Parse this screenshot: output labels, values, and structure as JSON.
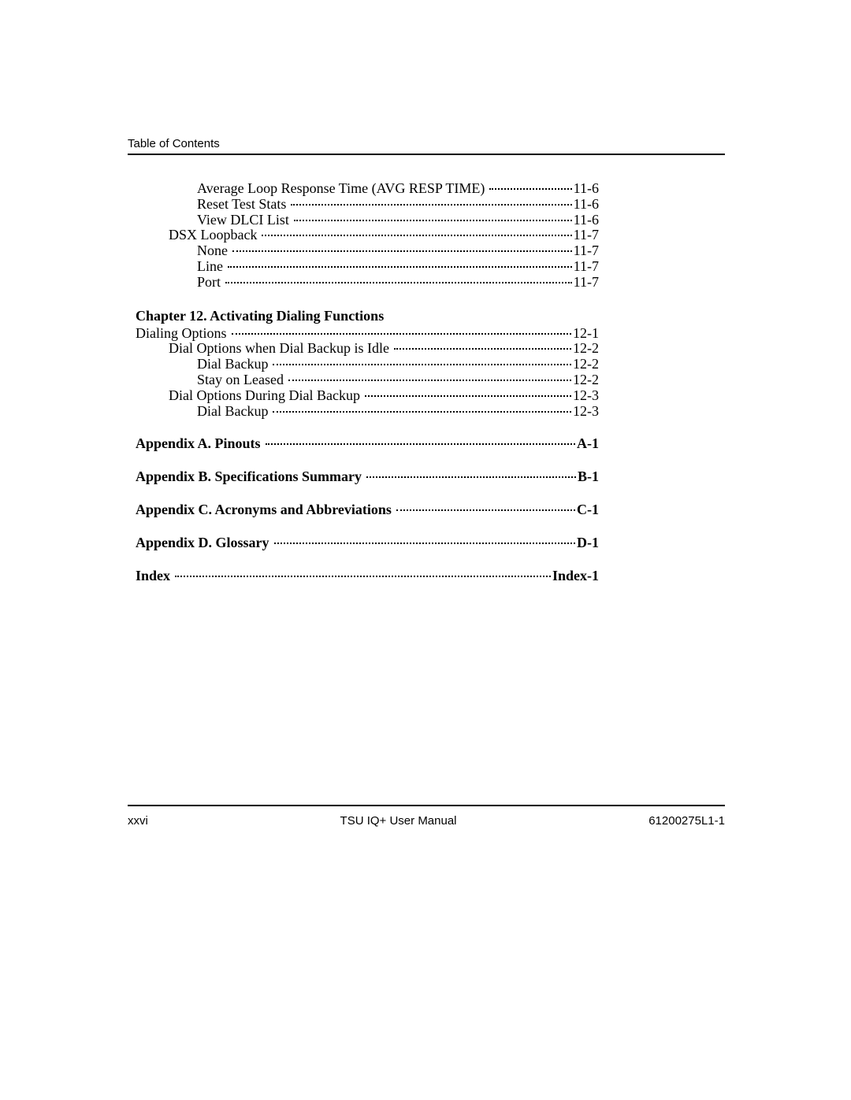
{
  "header": {
    "title": "Table of Contents"
  },
  "footer": {
    "page_number": "xxvi",
    "center": "TSU IQ+ User Manual",
    "doc_number": "61200275L1-1"
  },
  "toc": [
    {
      "label": "Average Loop Response Time (AVG RESP TIME)",
      "page": "11-6",
      "indent": 3,
      "bold": false,
      "leader": true
    },
    {
      "label": "Reset Test Stats",
      "page": "11-6",
      "indent": 2,
      "bold": false,
      "leader": true
    },
    {
      "label": "View DLCI List",
      "page": "11-6",
      "indent": 2,
      "bold": false,
      "leader": true
    },
    {
      "label": "DSX Loopback",
      "page": "11-7",
      "indent": 1,
      "bold": false,
      "leader": true
    },
    {
      "label": "None",
      "page": "11-7",
      "indent": 2,
      "bold": false,
      "leader": true
    },
    {
      "label": "Line",
      "page": "11-7",
      "indent": 2,
      "bold": false,
      "leader": true
    },
    {
      "label": "Port",
      "page": "11-7",
      "indent": 2,
      "bold": false,
      "leader": true
    },
    {
      "gap": "section"
    },
    {
      "label": "Chapter 12.  Activating Dialing Functions",
      "page": "",
      "indent": 0,
      "bold": true,
      "leader": false,
      "heading": true
    },
    {
      "label": "Dialing Options",
      "page": "12-1",
      "indent": 0,
      "bold": false,
      "leader": true
    },
    {
      "label": "Dial Options when Dial Backup is Idle",
      "page": "12-2",
      "indent": 1,
      "bold": false,
      "leader": true
    },
    {
      "label": "Dial Backup",
      "page": "12-2",
      "indent": 2,
      "bold": false,
      "leader": true
    },
    {
      "label": "Stay on Leased",
      "page": "12-2",
      "indent": 2,
      "bold": false,
      "leader": true
    },
    {
      "label": "Dial Options During Dial Backup",
      "page": "12-3",
      "indent": 1,
      "bold": false,
      "leader": true
    },
    {
      "label": "Dial Backup",
      "page": "12-3",
      "indent": 2,
      "bold": false,
      "leader": true
    },
    {
      "gap": "section"
    },
    {
      "label": "Appendix A.  Pinouts",
      "page": "A-1",
      "indent": 0,
      "bold": true,
      "leader": true
    },
    {
      "gap": "section"
    },
    {
      "label": "Appendix B.  Specifications Summary",
      "page": "B-1",
      "indent": 0,
      "bold": true,
      "leader": true
    },
    {
      "gap": "section"
    },
    {
      "label": "Appendix C.  Acronyms and Abbreviations",
      "page": "C-1",
      "indent": 0,
      "bold": true,
      "leader": true
    },
    {
      "gap": "section"
    },
    {
      "label": "Appendix D.  Glossary",
      "page": "D-1",
      "indent": 0,
      "bold": true,
      "leader": true
    },
    {
      "gap": "section"
    },
    {
      "label": "Index",
      "page": "Index-1",
      "indent": 0,
      "bold": true,
      "leader": true
    }
  ]
}
